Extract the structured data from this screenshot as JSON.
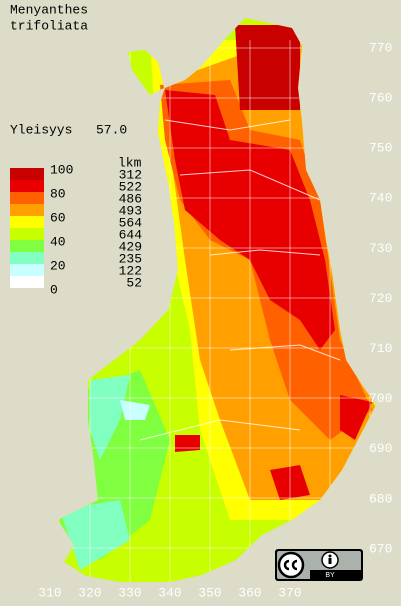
{
  "title": [
    "Menyanthes",
    "trifoliata"
  ],
  "frequency": {
    "label": "Yleisyys",
    "value": "57.0"
  },
  "legend": {
    "scale": [
      "100",
      "80",
      "60",
      "40",
      "20",
      "0"
    ],
    "count_header": "lkm",
    "counts": [
      "312",
      "522",
      "486",
      "493",
      "564",
      "644",
      "429",
      "235",
      "122",
      "52"
    ],
    "colors": [
      "#c80000",
      "#e80000",
      "#ff6000",
      "#ffa000",
      "#ffff00",
      "#c8ff00",
      "#80ff40",
      "#80ffc0",
      "#c8ffff",
      "#ffffff"
    ]
  },
  "y_axis_labels": [
    "770",
    "760",
    "750",
    "740",
    "730",
    "720",
    "710",
    "700",
    "690",
    "680",
    "670"
  ],
  "x_axis_labels": [
    "310",
    "320",
    "330",
    "340",
    "350",
    "360",
    "370"
  ],
  "license": "BY"
}
